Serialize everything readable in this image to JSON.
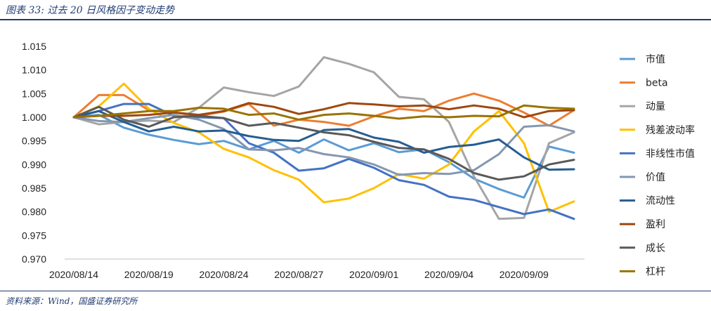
{
  "header": {
    "title": "图表 33: 过去 20 日风格因子变动走势"
  },
  "footer": {
    "source": "资料来源：Wind，国盛证券研究所"
  },
  "chart_data": {
    "type": "line",
    "title": "",
    "xlabel": "",
    "ylabel": "",
    "ylim": [
      0.97,
      1.015
    ],
    "yticks": [
      "0.970",
      "0.975",
      "0.980",
      "0.985",
      "0.990",
      "0.995",
      "1.000",
      "1.005",
      "1.010",
      "1.015"
    ],
    "x": [
      "2020/08/14",
      "2020/08/17",
      "2020/08/18",
      "2020/08/19",
      "2020/08/20",
      "2020/08/21",
      "2020/08/24",
      "2020/08/25",
      "2020/08/26",
      "2020/08/27",
      "2020/08/28",
      "2020/08/31",
      "2020/09/01",
      "2020/09/02",
      "2020/09/03",
      "2020/09/04",
      "2020/09/07",
      "2020/09/08",
      "2020/09/09",
      "2020/09/10",
      "2020/09/11"
    ],
    "xticks_shown": [
      "2020/08/14",
      "2020/08/19",
      "2020/08/24",
      "2020/08/27",
      "2020/09/01",
      "2020/09/04",
      "2020/09/09"
    ],
    "legend_position": "right",
    "grid": false,
    "series": [
      {
        "name": "市值",
        "color": "#5b9bd5",
        "values": [
          1.0,
          1.0005,
          0.9978,
          0.9963,
          0.9952,
          0.9943,
          0.995,
          0.9932,
          0.995,
          0.9925,
          0.9953,
          0.993,
          0.9945,
          0.9926,
          0.9932,
          0.9905,
          0.987,
          0.9848,
          0.983,
          0.9938,
          0.9925
        ]
      },
      {
        "name": "beta",
        "color": "#ed7d31",
        "values": [
          1.0,
          1.0047,
          1.0047,
          1.0015,
          1.001,
          1.0003,
          1.0012,
          1.0028,
          0.9982,
          0.9995,
          0.999,
          0.9982,
          1.0002,
          1.0018,
          1.0013,
          1.0035,
          1.005,
          1.0035,
          1.001,
          0.9982,
          1.0015
        ]
      },
      {
        "name": "动量",
        "color": "#a5a5a5",
        "values": [
          1.0,
          0.9985,
          0.999,
          0.9993,
          0.999,
          1.002,
          1.0063,
          1.0053,
          1.0045,
          1.0065,
          1.0127,
          1.0113,
          1.0095,
          1.0043,
          1.0038,
          0.999,
          0.9875,
          0.9785,
          0.9787,
          0.9945,
          0.9968
        ]
      },
      {
        "name": "残差波动率",
        "color": "#ffc000",
        "values": [
          1.0,
          1.0023,
          1.0071,
          1.0018,
          0.9988,
          0.9968,
          0.9933,
          0.9915,
          0.9888,
          0.9868,
          0.982,
          0.9828,
          0.985,
          0.988,
          0.987,
          0.99,
          0.997,
          1.0013,
          0.9945,
          0.98,
          0.9822
        ]
      },
      {
        "name": "非线性市值",
        "color": "#4472c4",
        "values": [
          1.0,
          1.0013,
          1.0028,
          1.0028,
          1.0003,
          1.0,
          0.9998,
          0.9945,
          0.9925,
          0.9887,
          0.9892,
          0.9912,
          0.9893,
          0.9867,
          0.9857,
          0.9832,
          0.9825,
          0.981,
          0.9795,
          0.9805,
          0.9785
        ]
      },
      {
        "name": "价值",
        "color": "#8497b0",
        "values": [
          1.0,
          0.9992,
          0.999,
          0.9998,
          1.0005,
          0.9995,
          0.9975,
          0.9932,
          0.993,
          0.9935,
          0.9922,
          0.9915,
          0.99,
          0.9878,
          0.9882,
          0.988,
          0.9888,
          0.9922,
          0.998,
          0.9983,
          0.997
        ]
      },
      {
        "name": "流动性",
        "color": "#255e91",
        "values": [
          1.0,
          1.0013,
          0.999,
          0.997,
          0.998,
          0.997,
          0.9972,
          0.996,
          0.9952,
          0.995,
          0.9973,
          0.9975,
          0.9957,
          0.9948,
          0.9925,
          0.9937,
          0.9942,
          0.9953,
          0.9915,
          0.9889,
          0.989
        ]
      },
      {
        "name": "盈利",
        "color": "#9e480e",
        "values": [
          1.0,
          1.0003,
          1.0003,
          1.0005,
          1.001,
          1.0005,
          1.0013,
          1.003,
          1.0022,
          1.0007,
          1.0017,
          1.003,
          1.0027,
          1.0023,
          1.0025,
          1.0017,
          1.0025,
          1.0018,
          1.0,
          1.0013,
          1.0015
        ]
      },
      {
        "name": "成长",
        "color": "#595959",
        "values": [
          1.0,
          1.0022,
          0.9995,
          0.998,
          1.0,
          1.0003,
          0.9998,
          0.9982,
          0.9988,
          0.9978,
          0.9968,
          0.9962,
          0.9948,
          0.9935,
          0.9932,
          0.9912,
          0.9882,
          0.9868,
          0.9875,
          0.99,
          0.991
        ]
      },
      {
        "name": "杠杆",
        "color": "#997300",
        "values": [
          1.0,
          1.0003,
          1.0008,
          1.0013,
          1.0013,
          1.002,
          1.0018,
          1.0005,
          1.0008,
          0.9995,
          1.0005,
          1.0008,
          1.0003,
          0.9997,
          1.0002,
          1.0,
          1.0003,
          1.0002,
          1.0025,
          1.002,
          1.0018
        ]
      }
    ]
  }
}
